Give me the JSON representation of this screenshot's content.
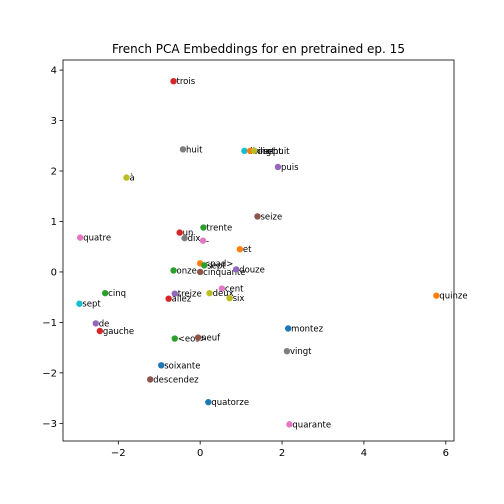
{
  "chart_data": {
    "type": "scatter",
    "title": "French PCA Embeddings for en pretrained ep. 15",
    "xlabel": "",
    "ylabel": "",
    "xlim": [
      -3.35,
      6.2
    ],
    "ylim": [
      -3.35,
      4.2
    ],
    "xticks": [
      -2,
      0,
      2,
      4,
      6
    ],
    "yticks": [
      -3,
      -2,
      -1,
      0,
      1,
      2,
      3,
      4
    ],
    "tick_labels_x": [
      "−2",
      "0",
      "2",
      "4",
      "6"
    ],
    "tick_labels_y": [
      "−3",
      "−2",
      "−1",
      "0",
      "1",
      "2",
      "3",
      "4"
    ],
    "grid": false,
    "points": [
      {
        "label": "trois",
        "x": -0.65,
        "y": 3.78,
        "color": "#d62728"
      },
      {
        "label": "huit",
        "x": -0.42,
        "y": 2.43,
        "color": "#7f7f7f"
      },
      {
        "label": "dix-sept",
        "x": 1.08,
        "y": 2.4,
        "color": "#17becf"
      },
      {
        "label": "vingt",
        "x": 1.22,
        "y": 2.4,
        "color": "#ff7f0e"
      },
      {
        "label": "dix-huit",
        "x": 1.32,
        "y": 2.4,
        "color": "#bcbd22"
      },
      {
        "label": "puis",
        "x": 1.9,
        "y": 2.08,
        "color": "#9467bd"
      },
      {
        "label": "à",
        "x": -1.8,
        "y": 1.87,
        "color": "#bcbd22"
      },
      {
        "label": "seize",
        "x": 1.4,
        "y": 1.1,
        "color": "#8c564b"
      },
      {
        "label": "trente",
        "x": 0.08,
        "y": 0.88,
        "color": "#2ca02c"
      },
      {
        "label": "un",
        "x": -0.5,
        "y": 0.78,
        "color": "#d62728"
      },
      {
        "label": "quatre",
        "x": -2.93,
        "y": 0.68,
        "color": "#e377c2"
      },
      {
        "label": "dix",
        "x": -0.38,
        "y": 0.67,
        "color": "#7f7f7f"
      },
      {
        "label": "-",
        "x": 0.07,
        "y": 0.62,
        "color": "#e377c2"
      },
      {
        "label": "et",
        "x": 0.97,
        "y": 0.45,
        "color": "#ff7f0e"
      },
      {
        "label": "<pad>",
        "x": 0.0,
        "y": 0.17,
        "color": "#ff7f0e"
      },
      {
        "label": "sept",
        "x": 0.1,
        "y": 0.13,
        "color": "#2ca02c"
      },
      {
        "label": "onze",
        "x": -0.65,
        "y": 0.03,
        "color": "#2ca02c"
      },
      {
        "label": "cinquante",
        "x": 0.0,
        "y": 0.0,
        "color": "#8c564b"
      },
      {
        "label": "douze",
        "x": 0.88,
        "y": 0.05,
        "color": "#9467bd"
      },
      {
        "label": "cent",
        "x": 0.53,
        "y": -0.33,
        "color": "#e377c2"
      },
      {
        "label": "cinq",
        "x": -2.32,
        "y": -0.42,
        "color": "#2ca02c"
      },
      {
        "label": "treize",
        "x": -0.62,
        "y": -0.43,
        "color": "#9467bd"
      },
      {
        "label": "deux",
        "x": 0.23,
        "y": -0.42,
        "color": "#bcbd22"
      },
      {
        "label": "six",
        "x": 0.72,
        "y": -0.52,
        "color": "#bcbd22"
      },
      {
        "label": "allez",
        "x": -0.77,
        "y": -0.53,
        "color": "#d62728"
      },
      {
        "label": "quinze",
        "x": 5.77,
        "y": -0.47,
        "color": "#ff7f0e"
      },
      {
        "label": "sept",
        "x": -2.95,
        "y": -0.63,
        "color": "#17becf"
      },
      {
        "label": "de",
        "x": -2.55,
        "y": -1.02,
        "color": "#9467bd"
      },
      {
        "label": "montez",
        "x": 2.15,
        "y": -1.12,
        "color": "#1f77b4"
      },
      {
        "label": "gauche",
        "x": -2.45,
        "y": -1.17,
        "color": "#d62728"
      },
      {
        "label": "<eos>",
        "x": -0.62,
        "y": -1.32,
        "color": "#2ca02c"
      },
      {
        "label": "neuf",
        "x": -0.05,
        "y": -1.3,
        "color": "#8c564b"
      },
      {
        "label": "vingt",
        "x": 2.12,
        "y": -1.57,
        "color": "#7f7f7f"
      },
      {
        "label": "soixante",
        "x": -0.95,
        "y": -1.85,
        "color": "#1f77b4"
      },
      {
        "label": "descendez",
        "x": -1.22,
        "y": -2.13,
        "color": "#8c564b"
      },
      {
        "label": "quatorze",
        "x": 0.2,
        "y": -2.58,
        "color": "#1f77b4"
      },
      {
        "label": "quarante",
        "x": 2.18,
        "y": -3.02,
        "color": "#e377c2"
      }
    ]
  }
}
